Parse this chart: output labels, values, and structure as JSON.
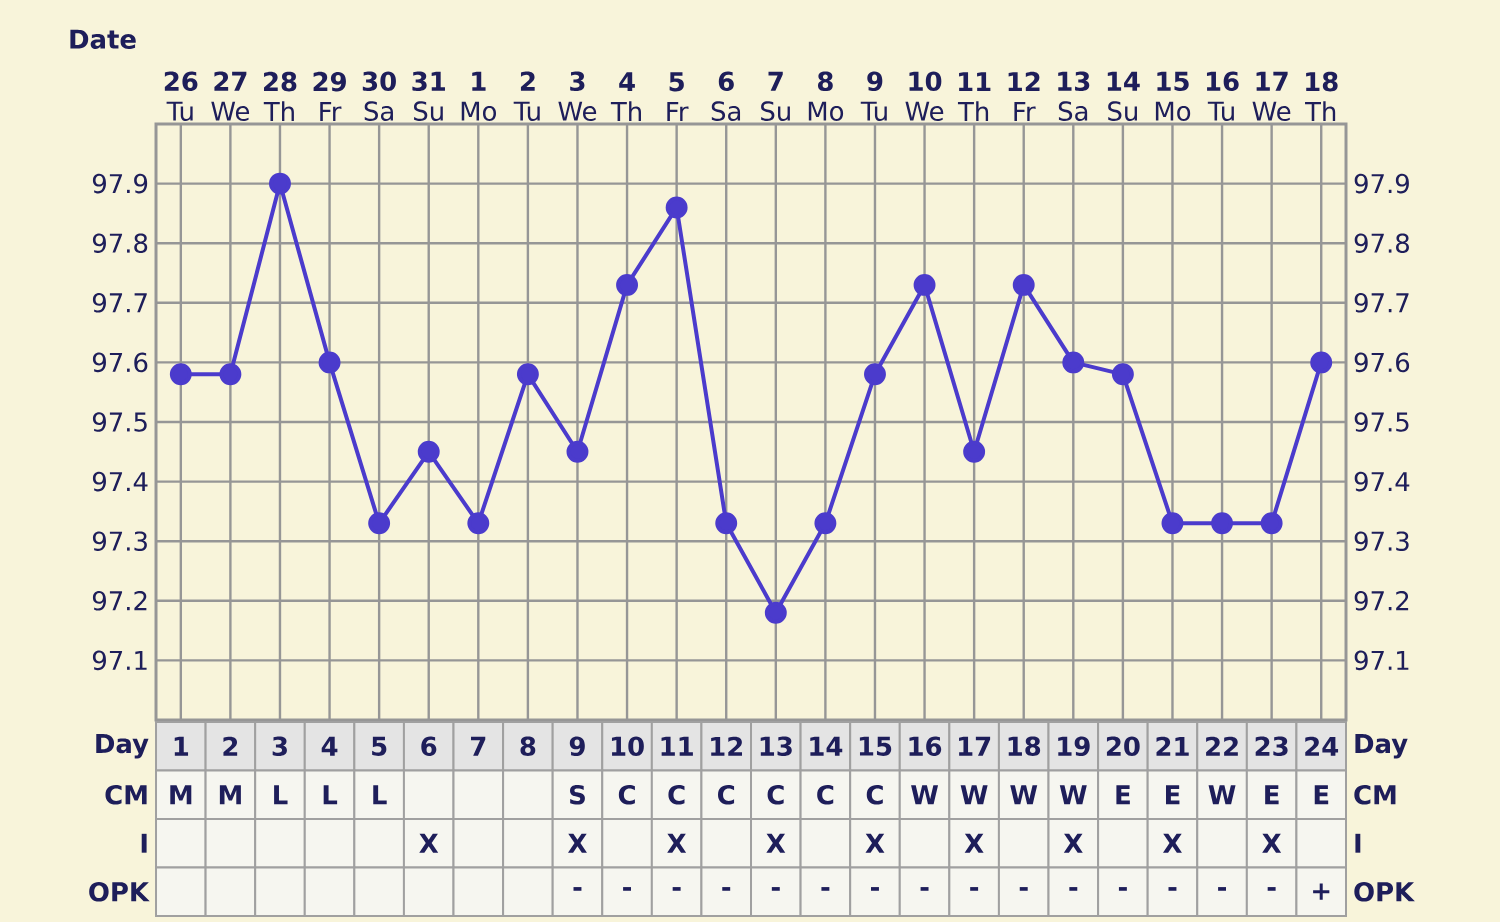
{
  "chart_data": [
    {
      "type": "line",
      "categories": [
        "**26** Tu",
        "**27** We",
        "**28** Th",
        "**29** Fr",
        "**30** Sa",
        "**31** Su",
        "**1** Mo",
        "**2** Tu",
        "**3** We",
        "**4** Th",
        "**5** Fr",
        "**6** Sa",
        "**7** Su",
        "**8** Mo",
        "**9** Tu",
        "**10** We",
        "**11** Th",
        "**12** Fr",
        "**13** Sa",
        "**14** Su",
        "**15** Mo",
        "**16** Tu",
        "**17** We",
        "**18** Th"
      ],
      "xlabel": "Date",
      "ylim": [
        97.0,
        98.0
      ],
      "yticks": [
        97.1,
        97.2,
        97.3,
        97.4,
        97.5,
        97.6,
        97.7,
        97.8,
        97.9
      ],
      "y2lim": [
        97.0,
        98.0
      ],
      "y2ticks": [
        97.1,
        97.2,
        97.3,
        97.4,
        97.5,
        97.6,
        97.7,
        97.8,
        97.9
      ],
      "color": "#4b3bcc",
      "values": [
        97.58,
        97.58,
        97.9,
        97.6,
        97.33,
        97.45,
        97.33,
        97.58,
        97.45,
        97.73,
        97.86,
        97.33,
        97.18,
        97.33,
        97.58,
        97.73,
        97.45,
        97.73,
        97.6,
        97.58,
        97.33,
        97.33,
        97.33,
        97.6
      ],
      "marker": "circle",
      "line_style": "solid",
      "grid": true
    },
    {
      "type": "heatmap",
      "categories": [
        null,
        null,
        null,
        null,
        null,
        null,
        null,
        null,
        null,
        null,
        null,
        null,
        null,
        null,
        null,
        null,
        null,
        null,
        null,
        null,
        null,
        null,
        null,
        null
      ],
      "y_categories": [
        "Day",
        "CM",
        "I",
        "OPK"
      ],
      "y2_categories": [
        "Day",
        "CM",
        "I",
        "OPK"
      ],
      "cells": [
        [
          null,
          null,
          null,
          null,
          null,
          null,
          null,
          null,
          null,
          null,
          null,
          null,
          null,
          null,
          null,
          null,
          null,
          null,
          null,
          null,
          null,
          null,
          null,
          null
        ],
        [
          null,
          null,
          null,
          null,
          null,
          null,
          null,
          null,
          null,
          null,
          null,
          null,
          null,
          null,
          null,
          null,
          null,
          null,
          null,
          null,
          null,
          null,
          null,
          null
        ],
        [
          null,
          null,
          null,
          null,
          null,
          null,
          null,
          null,
          null,
          null,
          null,
          null,
          null,
          null,
          null,
          null,
          null,
          null,
          null,
          null,
          null,
          null,
          null,
          null
        ],
        [
          null,
          null,
          null,
          null,
          null,
          null,
          null,
          null,
          null,
          null,
          null,
          null,
          null,
          null,
          null,
          null,
          null,
          null,
          null,
          null,
          null,
          null,
          null,
          null
        ]
      ],
      "cell_labels": [
        [
          "1",
          "2",
          "3",
          "4",
          "5",
          "6",
          "7",
          "8",
          "9",
          "10",
          "11",
          "12",
          "13",
          "14",
          "15",
          "16",
          "17",
          "18",
          "19",
          "20",
          "21",
          "22",
          "23",
          "24"
        ],
        [
          "M",
          "M",
          "L",
          "L",
          "L",
          null,
          null,
          null,
          "S",
          "C",
          "C",
          "C",
          "C",
          "C",
          "C",
          "W",
          "W",
          "W",
          "W",
          "E",
          "E",
          "W",
          "E",
          "E"
        ],
        [
          null,
          null,
          null,
          null,
          null,
          "X",
          null,
          null,
          "X",
          null,
          "X",
          null,
          "X",
          null,
          "X",
          null,
          "X",
          null,
          "X",
          null,
          "X",
          null,
          "X",
          null
        ],
        [
          null,
          null,
          null,
          null,
          null,
          null,
          null,
          null,
          "-",
          "-",
          "-",
          "-",
          "-",
          "-",
          "-",
          "-",
          "-",
          "-",
          "-",
          "-",
          "-",
          "-",
          "-",
          "+"
        ]
      ]
    }
  ]
}
